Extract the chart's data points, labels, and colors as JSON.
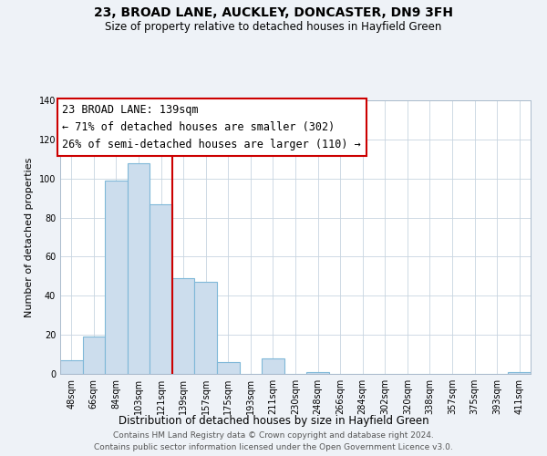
{
  "title": "23, BROAD LANE, AUCKLEY, DONCASTER, DN9 3FH",
  "subtitle": "Size of property relative to detached houses in Hayfield Green",
  "xlabel": "Distribution of detached houses by size in Hayfield Green",
  "ylabel": "Number of detached properties",
  "bar_labels": [
    "48sqm",
    "66sqm",
    "84sqm",
    "103sqm",
    "121sqm",
    "139sqm",
    "157sqm",
    "175sqm",
    "193sqm",
    "211sqm",
    "230sqm",
    "248sqm",
    "266sqm",
    "284sqm",
    "302sqm",
    "320sqm",
    "338sqm",
    "357sqm",
    "375sqm",
    "393sqm",
    "411sqm"
  ],
  "bar_values": [
    7,
    19,
    99,
    108,
    87,
    49,
    47,
    6,
    0,
    8,
    0,
    1,
    0,
    0,
    0,
    0,
    0,
    0,
    0,
    0,
    1
  ],
  "bar_color": "#ccdded",
  "bar_edge_color": "#7fb8d8",
  "highlight_line_color": "#cc0000",
  "annotation_text_line1": "23 BROAD LANE: 139sqm",
  "annotation_text_line2": "← 71% of detached houses are smaller (302)",
  "annotation_text_line3": "26% of semi-detached houses are larger (110) →",
  "annotation_box_color": "#ffffff",
  "annotation_box_edge_color": "#cc0000",
  "ylim": [
    0,
    140
  ],
  "yticks": [
    0,
    20,
    40,
    60,
    80,
    100,
    120,
    140
  ],
  "footer_line1": "Contains HM Land Registry data © Crown copyright and database right 2024.",
  "footer_line2": "Contains public sector information licensed under the Open Government Licence v3.0.",
  "bg_color": "#eef2f7",
  "plot_bg_color": "#ffffff",
  "grid_color": "#c8d4e0",
  "title_fontsize": 10,
  "subtitle_fontsize": 8.5,
  "xlabel_fontsize": 8.5,
  "ylabel_fontsize": 8,
  "tick_fontsize": 7,
  "annotation_fontsize": 8.5,
  "footer_fontsize": 6.5
}
